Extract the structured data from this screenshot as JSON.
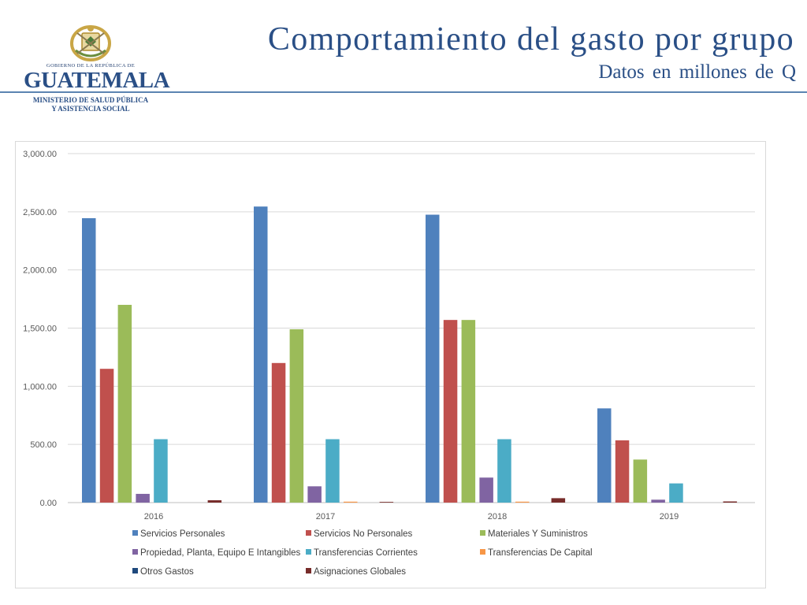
{
  "header": {
    "title": "Comportamiento del gasto por grupo",
    "subtitle": "Datos  en millones  de Q",
    "logo": {
      "top_text": "GOBIERNO DE LA REPÚBLICA DE",
      "main_text": "GUATEMALA",
      "sub_line1": "MINISTERIO DE SALUD PÚBLICA",
      "sub_line2": "Y ASISTENCIA SOCIAL",
      "emblem_icon": "coat-of-arms-icon"
    }
  },
  "chart_data": {
    "type": "bar",
    "title": "",
    "xlabel": "",
    "ylabel": "",
    "categories": [
      "2016",
      "2017",
      "2018",
      "2019"
    ],
    "ylim": [
      0,
      3000
    ],
    "yticks": [
      0,
      500,
      1000,
      1500,
      2000,
      2500,
      3000
    ],
    "ytick_labels": [
      "0.00",
      "500.00",
      "1,000.00",
      "1,500.00",
      "2,000.00",
      "2,500.00",
      "3,000.00"
    ],
    "grid": true,
    "legend_position": "bottom",
    "series": [
      {
        "name": "Servicios Personales",
        "color": "#4f81bd",
        "values": [
          2445,
          2545,
          2475,
          810
        ]
      },
      {
        "name": "Servicios No Personales",
        "color": "#c0504d",
        "values": [
          1150,
          1200,
          1570,
          535
        ]
      },
      {
        "name": "Materiales Y Suministros",
        "color": "#9bbb59",
        "values": [
          1700,
          1490,
          1570,
          370
        ]
      },
      {
        "name": "Propiedad, Planta, Equipo  E Intangibles",
        "color": "#8064a2",
        "values": [
          75,
          140,
          215,
          25
        ]
      },
      {
        "name": "Transferencias Corrientes",
        "color": "#4bacc6",
        "values": [
          545,
          545,
          545,
          165
        ]
      },
      {
        "name": "Transferencias De Capital",
        "color": "#f79646",
        "values": [
          0,
          8,
          8,
          0
        ]
      },
      {
        "name": "Otros Gastos",
        "color": "#1f497d",
        "values": [
          0,
          0,
          0,
          0
        ]
      },
      {
        "name": "Asignaciones Globales",
        "color": "#772c2a",
        "values": [
          20,
          6,
          38,
          10
        ]
      }
    ]
  }
}
